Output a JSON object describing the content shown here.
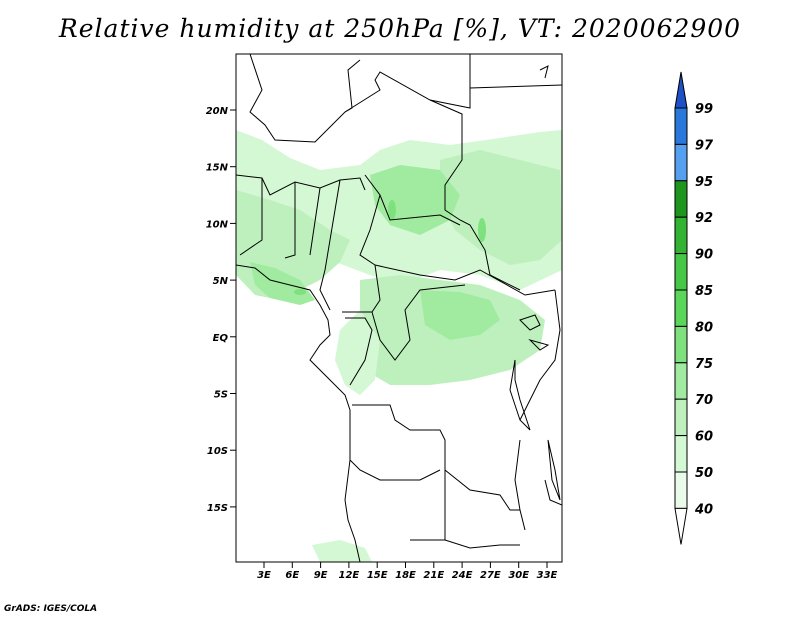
{
  "title": "Relative humidity at 250hPa [%], VT: 2020062900",
  "credit": "GrADS: IGES/COLA",
  "map": {
    "projection": "lat-lon",
    "lon_range": [
      0,
      35
    ],
    "lat_range": [
      -20,
      24.5
    ],
    "lat_labels": [
      "20N",
      "15N",
      "10N",
      "5N",
      "EQ",
      "5S",
      "10S",
      "15S"
    ],
    "lon_labels": [
      "3E",
      "6E",
      "9E",
      "12E",
      "15E",
      "18E",
      "21E",
      "24E",
      "27E",
      "30E",
      "33E"
    ],
    "field_color_note": "greens for 75-95%, blues above 95%"
  },
  "colorbar": {
    "levels": [
      "99",
      "97",
      "95",
      "92",
      "90",
      "85",
      "80",
      "75",
      "70",
      "60",
      "50",
      "40"
    ],
    "colors": [
      "#1e50c8",
      "#2a78dc",
      "#55a0f0",
      "#1e961e",
      "#32b432",
      "#46c846",
      "#5ad75a",
      "#7ee17e",
      "#a0eba0",
      "#bef0be",
      "#d4f7d4",
      "#eafbea"
    ]
  }
}
